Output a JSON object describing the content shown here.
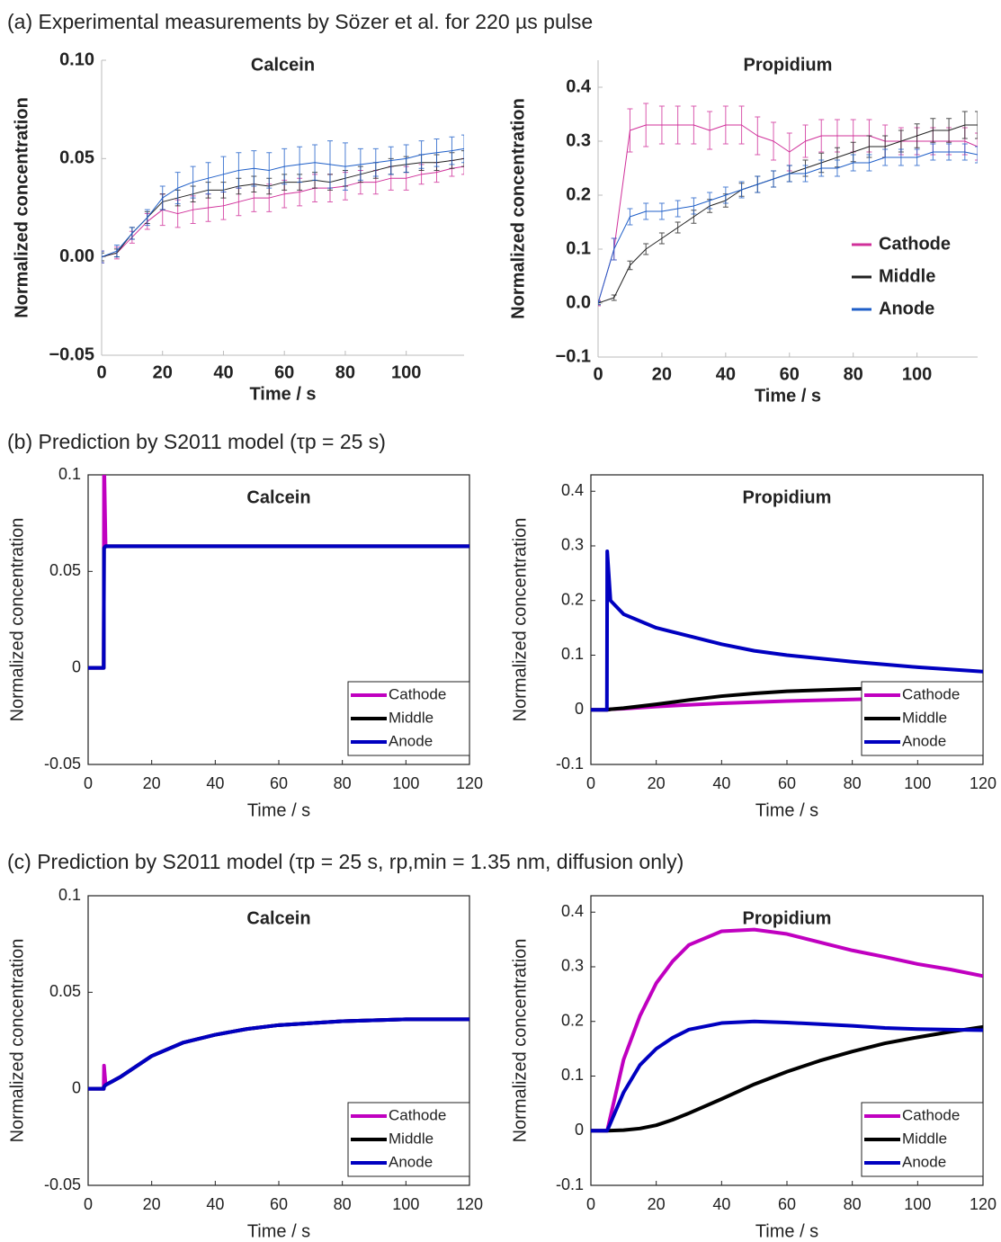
{
  "headings": [
    "(a) Experimental measurements by Sözer et al. for 220 µs pulse",
    "(b) Prediction by S2011 model (τp = 25 s)",
    "(c) Prediction by S2011 model (τp = 25 s, rp,min = 1.35 nm, diffusion only)"
  ],
  "chart_data": [
    {
      "type": "line",
      "title": "Calcein",
      "xlabel": "Time / s",
      "ylabel": "Normalized concentration",
      "frame": false,
      "bold": true,
      "line_width": 1,
      "x": [
        0,
        5,
        10,
        15,
        20,
        25,
        30,
        35,
        40,
        45,
        50,
        55,
        60,
        65,
        70,
        75,
        80,
        85,
        90,
        95,
        100,
        105,
        110,
        115,
        119
      ],
      "xlim": [
        0,
        119
      ],
      "xticks": [
        0,
        20,
        40,
        60,
        80,
        100
      ],
      "ylim": [
        -0.05,
        0.1
      ],
      "yticks": [
        {
          "value": -0.05,
          "label": "−0.05"
        },
        {
          "value": 0,
          "label": "0.00"
        },
        0.05,
        {
          "value": 0.1,
          "label": "0.10"
        }
      ],
      "series": [
        {
          "name": "Cathode",
          "color": "#d0309a",
          "values": [
            0,
            0.002,
            0.01,
            0.018,
            0.024,
            0.022,
            0.024,
            0.025,
            0.026,
            0.028,
            0.03,
            0.03,
            0.032,
            0.033,
            0.035,
            0.035,
            0.036,
            0.038,
            0.038,
            0.04,
            0.04,
            0.042,
            0.043,
            0.045,
            0.046
          ],
          "errors": [
            0.003,
            0.003,
            0.003,
            0.004,
            0.008,
            0.007,
            0.007,
            0.007,
            0.007,
            0.007,
            0.007,
            0.007,
            0.007,
            0.007,
            0.007,
            0.007,
            0.007,
            0.006,
            0.006,
            0.006,
            0.006,
            0.005,
            0.005,
            0.004,
            0.004
          ]
        },
        {
          "name": "Middle",
          "color": "#222222",
          "values": [
            0,
            0.002,
            0.012,
            0.02,
            0.028,
            0.03,
            0.032,
            0.034,
            0.034,
            0.036,
            0.037,
            0.036,
            0.038,
            0.038,
            0.039,
            0.038,
            0.04,
            0.042,
            0.044,
            0.046,
            0.047,
            0.048,
            0.048,
            0.049,
            0.05
          ],
          "errors": [
            0.002,
            0.002,
            0.003,
            0.003,
            0.004,
            0.004,
            0.004,
            0.004,
            0.004,
            0.004,
            0.004,
            0.004,
            0.004,
            0.004,
            0.004,
            0.004,
            0.004,
            0.004,
            0.004,
            0.004,
            0.004,
            0.004,
            0.004,
            0.004,
            0.004
          ]
        },
        {
          "name": "Anode",
          "color": "#1f5fc8",
          "values": [
            0,
            0.003,
            0.012,
            0.02,
            0.03,
            0.035,
            0.038,
            0.04,
            0.042,
            0.044,
            0.045,
            0.044,
            0.046,
            0.047,
            0.048,
            0.047,
            0.046,
            0.047,
            0.048,
            0.049,
            0.05,
            0.052,
            0.053,
            0.054,
            0.055
          ],
          "errors": [
            0.003,
            0.003,
            0.003,
            0.004,
            0.006,
            0.008,
            0.008,
            0.008,
            0.009,
            0.009,
            0.009,
            0.009,
            0.009,
            0.009,
            0.009,
            0.012,
            0.012,
            0.008,
            0.007,
            0.007,
            0.007,
            0.007,
            0.007,
            0.007,
            0.007
          ]
        }
      ]
    },
    {
      "type": "line",
      "title": "Propidium",
      "xlabel": "Time / s",
      "ylabel": "Normalized concentration",
      "frame": false,
      "bold": true,
      "line_width": 1,
      "legend": "center right",
      "x": [
        0,
        5,
        10,
        15,
        20,
        25,
        30,
        35,
        40,
        45,
        50,
        55,
        60,
        65,
        70,
        75,
        80,
        85,
        90,
        95,
        100,
        105,
        110,
        115,
        119
      ],
      "xlim": [
        0,
        119
      ],
      "xticks": [
        0,
        20,
        40,
        60,
        80,
        100
      ],
      "ylim": [
        -0.1,
        0.45
      ],
      "yticks": [
        {
          "value": -0.1,
          "label": "−0.1"
        },
        {
          "value": 0,
          "label": "0.0"
        },
        0.1,
        0.2,
        0.3,
        0.4
      ],
      "series": [
        {
          "name": "Cathode",
          "color": "#d0309a",
          "values": [
            0,
            0.1,
            0.32,
            0.33,
            0.33,
            0.33,
            0.33,
            0.32,
            0.33,
            0.33,
            0.31,
            0.3,
            0.28,
            0.3,
            0.31,
            0.31,
            0.31,
            0.31,
            0.3,
            0.3,
            0.3,
            0.3,
            0.3,
            0.3,
            0.29
          ],
          "errors": [
            0.005,
            0.02,
            0.04,
            0.04,
            0.035,
            0.035,
            0.035,
            0.035,
            0.035,
            0.035,
            0.035,
            0.035,
            0.035,
            0.03,
            0.03,
            0.03,
            0.03,
            0.03,
            0.03,
            0.025,
            0.025,
            0.025,
            0.025,
            0.025,
            0.025
          ]
        },
        {
          "name": "Middle",
          "color": "#222222",
          "values": [
            0,
            0.01,
            0.07,
            0.1,
            0.12,
            0.14,
            0.16,
            0.18,
            0.19,
            0.21,
            0.22,
            0.23,
            0.24,
            0.25,
            0.26,
            0.27,
            0.28,
            0.29,
            0.29,
            0.3,
            0.31,
            0.32,
            0.32,
            0.33,
            0.33
          ],
          "errors": [
            0.003,
            0.005,
            0.008,
            0.01,
            0.01,
            0.01,
            0.012,
            0.012,
            0.012,
            0.012,
            0.015,
            0.015,
            0.015,
            0.015,
            0.018,
            0.018,
            0.018,
            0.02,
            0.02,
            0.02,
            0.022,
            0.022,
            0.022,
            0.025,
            0.025
          ]
        },
        {
          "name": "Anode",
          "color": "#1f5fc8",
          "values": [
            0,
            0.1,
            0.16,
            0.17,
            0.17,
            0.175,
            0.18,
            0.19,
            0.2,
            0.21,
            0.22,
            0.23,
            0.24,
            0.24,
            0.25,
            0.25,
            0.26,
            0.26,
            0.27,
            0.27,
            0.27,
            0.28,
            0.28,
            0.28,
            0.275
          ],
          "errors": [
            0.003,
            0.02,
            0.015,
            0.015,
            0.015,
            0.015,
            0.015,
            0.015,
            0.015,
            0.015,
            0.015,
            0.015,
            0.015,
            0.015,
            0.015,
            0.015,
            0.015,
            0.015,
            0.015,
            0.015,
            0.015,
            0.015,
            0.015,
            0.015,
            0.015
          ]
        }
      ]
    },
    {
      "type": "line",
      "title": "Calcein",
      "xlabel": "Time / s",
      "ylabel": "Normalized concentration",
      "frame": true,
      "bold": false,
      "line_width": 4,
      "legend": "lower right",
      "x": [
        0,
        4.9,
        5,
        5.5,
        10,
        20,
        40,
        60,
        80,
        100,
        120
      ],
      "xlim": [
        0,
        120
      ],
      "xticks": [
        0,
        20,
        40,
        60,
        80,
        100,
        120
      ],
      "ylim": [
        -0.05,
        0.1
      ],
      "yticks": [
        -0.05,
        0,
        0.05,
        0.1
      ],
      "series": [
        {
          "name": "Cathode",
          "color": "#c000c0",
          "values": [
            0,
            0,
            0.11,
            0.063,
            0.063,
            0.063,
            0.063,
            0.063,
            0.063,
            0.063,
            0.063
          ]
        },
        {
          "name": "Middle",
          "color": "#000000",
          "values": [
            0,
            0,
            0.062,
            0.063,
            0.063,
            0.063,
            0.063,
            0.063,
            0.063,
            0.063,
            0.063
          ]
        },
        {
          "name": "Anode",
          "color": "#0000c0",
          "values": [
            0,
            0,
            0.062,
            0.063,
            0.063,
            0.063,
            0.063,
            0.063,
            0.063,
            0.063,
            0.063
          ]
        }
      ]
    },
    {
      "type": "line",
      "title": "Propidium",
      "xlabel": "Time / s",
      "ylabel": "Normalized concentration",
      "frame": true,
      "bold": false,
      "line_width": 4,
      "legend": "lower right",
      "x": [
        0,
        4.9,
        5,
        6,
        10,
        20,
        30,
        40,
        50,
        60,
        80,
        100,
        120
      ],
      "xlim": [
        0,
        120
      ],
      "xticks": [
        0,
        20,
        40,
        60,
        80,
        100,
        120
      ],
      "ylim": [
        -0.1,
        0.43
      ],
      "yticks": [
        -0.1,
        0,
        0.1,
        0.2,
        0.3,
        0.4
      ],
      "series": [
        {
          "name": "Cathode",
          "color": "#c000c0",
          "values": [
            0,
            0,
            0,
            0.001,
            0.002,
            0.006,
            0.009,
            0.012,
            0.014,
            0.016,
            0.019,
            0.022,
            0.025
          ]
        },
        {
          "name": "Middle",
          "color": "#000000",
          "values": [
            0,
            0,
            0,
            0.001,
            0.003,
            0.01,
            0.018,
            0.025,
            0.03,
            0.034,
            0.038,
            0.041,
            0.043
          ]
        },
        {
          "name": "Anode",
          "color": "#0000c0",
          "values": [
            0,
            0,
            0.29,
            0.2,
            0.175,
            0.15,
            0.135,
            0.12,
            0.108,
            0.1,
            0.088,
            0.078,
            0.07
          ]
        }
      ]
    },
    {
      "type": "line",
      "title": "Calcein",
      "xlabel": "Time / s",
      "ylabel": "Normalized concentration",
      "frame": true,
      "bold": false,
      "line_width": 4,
      "legend": "lower right",
      "x": [
        0,
        4.9,
        5,
        5.5,
        10,
        20,
        30,
        40,
        50,
        60,
        80,
        100,
        120
      ],
      "xlim": [
        0,
        120
      ],
      "xticks": [
        0,
        20,
        40,
        60,
        80,
        100,
        120
      ],
      "ylim": [
        -0.05,
        0.1
      ],
      "yticks": [
        -0.05,
        0,
        0.05,
        0.1
      ],
      "series": [
        {
          "name": "Cathode",
          "color": "#c000c0",
          "values": [
            0,
            0,
            0.012,
            0.002,
            0.006,
            0.017,
            0.024,
            0.028,
            0.031,
            0.033,
            0.035,
            0.036,
            0.036
          ]
        },
        {
          "name": "Middle",
          "color": "#000000",
          "values": [
            0,
            0,
            0.001,
            0.002,
            0.006,
            0.017,
            0.024,
            0.028,
            0.031,
            0.033,
            0.035,
            0.036,
            0.036
          ]
        },
        {
          "name": "Anode",
          "color": "#0000c0",
          "values": [
            0,
            0,
            0.001,
            0.002,
            0.006,
            0.017,
            0.024,
            0.028,
            0.031,
            0.033,
            0.035,
            0.036,
            0.036
          ]
        }
      ]
    },
    {
      "type": "line",
      "title": "Propidium",
      "xlabel": "Time / s",
      "ylabel": "Normalized concentration",
      "frame": true,
      "bold": false,
      "line_width": 4,
      "legend": "lower right",
      "x": [
        0,
        5,
        10,
        15,
        20,
        25,
        30,
        40,
        50,
        60,
        70,
        80,
        90,
        100,
        110,
        120
      ],
      "xlim": [
        0,
        120
      ],
      "xticks": [
        0,
        20,
        40,
        60,
        80,
        100,
        120
      ],
      "ylim": [
        -0.1,
        0.43
      ],
      "yticks": [
        -0.1,
        0,
        0.1,
        0.2,
        0.3,
        0.4
      ],
      "series": [
        {
          "name": "Cathode",
          "color": "#c000c0",
          "values": [
            0,
            0,
            0.13,
            0.21,
            0.27,
            0.31,
            0.34,
            0.365,
            0.368,
            0.36,
            0.345,
            0.33,
            0.318,
            0.305,
            0.295,
            0.283
          ]
        },
        {
          "name": "Middle",
          "color": "#000000",
          "values": [
            0,
            0,
            0.001,
            0.004,
            0.01,
            0.02,
            0.032,
            0.058,
            0.085,
            0.108,
            0.128,
            0.145,
            0.16,
            0.171,
            0.181,
            0.19
          ]
        },
        {
          "name": "Anode",
          "color": "#0000c0",
          "values": [
            0,
            0,
            0.07,
            0.12,
            0.15,
            0.17,
            0.185,
            0.197,
            0.2,
            0.198,
            0.195,
            0.192,
            0.188,
            0.186,
            0.185,
            0.184
          ]
        }
      ]
    }
  ]
}
